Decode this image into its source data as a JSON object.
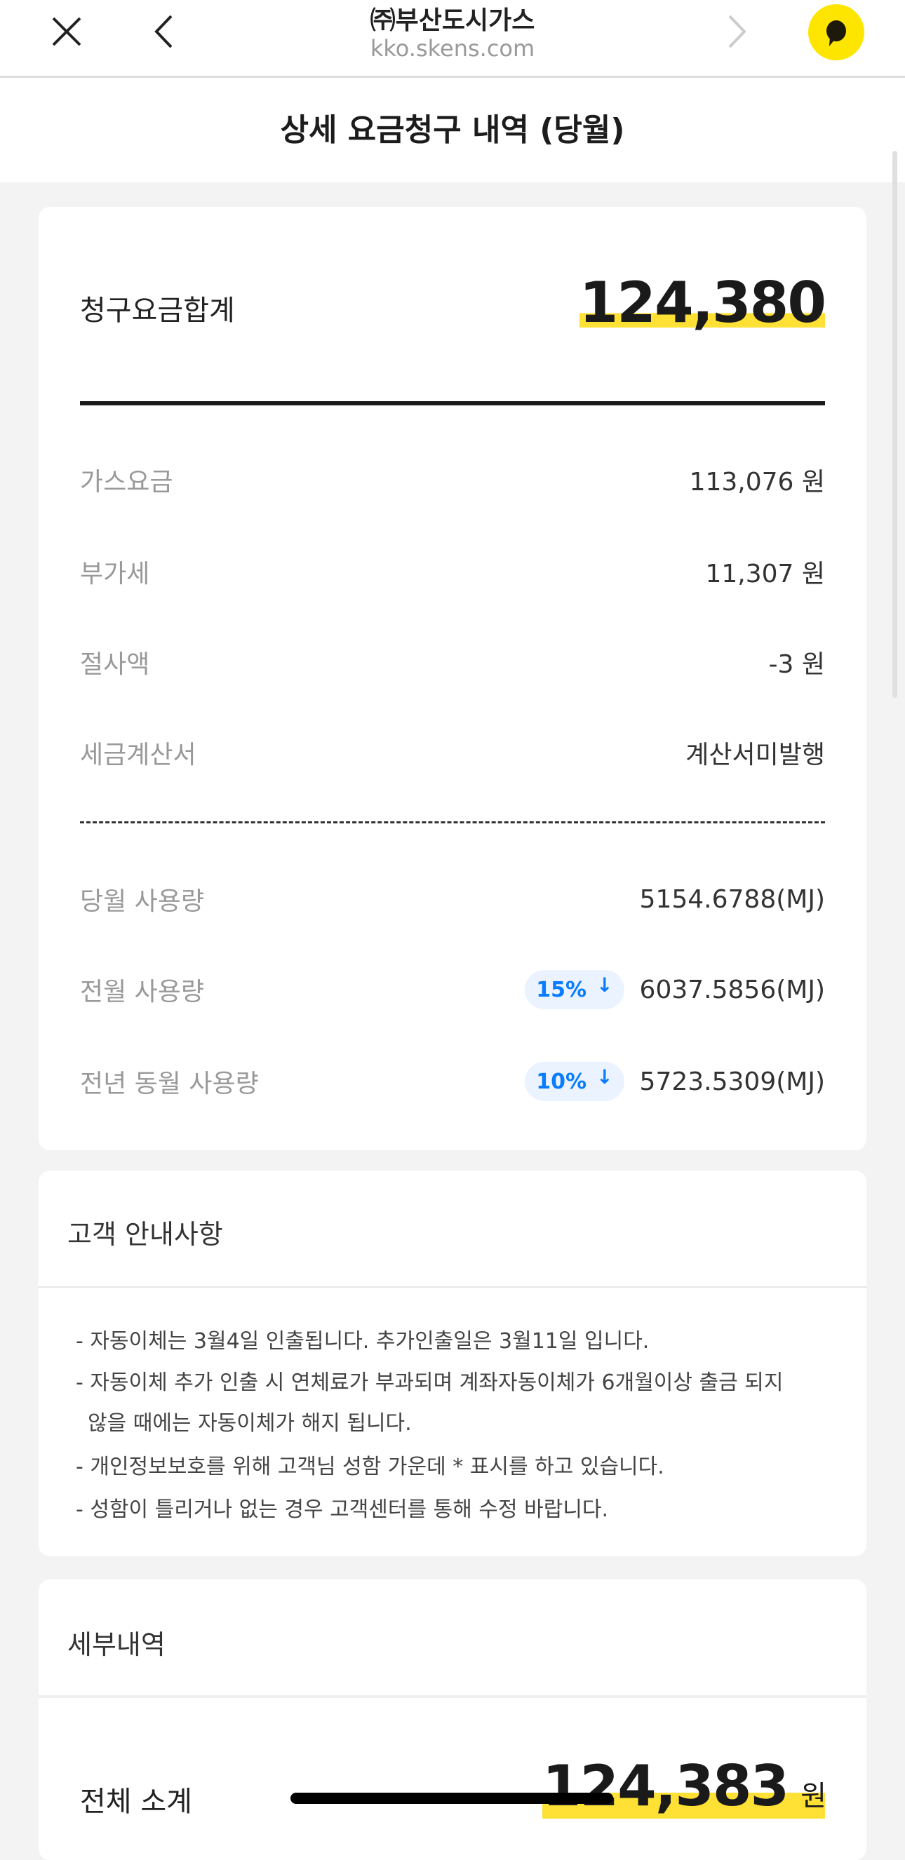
{
  "browser": {
    "site_name": "㈜부산도시가스",
    "url": "kko.skens.com"
  },
  "page_title": "상세 요금청구 내역 (당월)",
  "summary": {
    "total_label": "청구요금합계",
    "total_value": "124,380",
    "charges": [
      {
        "label": "가스요금",
        "value": "113,076 원"
      },
      {
        "label": "부가세",
        "value": "11,307 원"
      },
      {
        "label": "절사액",
        "value": "-3 원"
      },
      {
        "label": "세금계산서",
        "value": "계산서미발행"
      }
    ],
    "usage": [
      {
        "label": "당월 사용량",
        "value": "5154.6788(MJ)"
      },
      {
        "label": "전월 사용량",
        "value": "6037.5856(MJ)",
        "badge": "15%",
        "trend": "down"
      },
      {
        "label": "전년 동월 사용량",
        "value": "5723.5309(MJ)",
        "badge": "10%",
        "trend": "down"
      }
    ]
  },
  "notice": {
    "title": "고객 안내사항",
    "lines": [
      "- 자동이체는 3월4일 인출됩니다. 추가인출일은 3월11일 입니다.",
      "- 자동이체 추가 인출 시 연체료가 부과되며 계좌자동이체가 6개월이상 출금 되지",
      "  않을 때에는 자동이체가 해지 됩니다.",
      "- 개인정보보호를 위해 고객님 성함 가운데 * 표시를 하고 있습니다.",
      "- 성함이 틀리거나 없는 경우 고객센터를 통해 수정 바랍니다."
    ]
  },
  "details": {
    "title": "세부내역",
    "subtotal_label": "전체 소계",
    "subtotal_value": "124,383",
    "subtotal_unit": "원"
  },
  "colors": {
    "accent_yellow": "#ffe034",
    "kakao_yellow": "#fee500",
    "badge_blue": "#0a7cff"
  }
}
